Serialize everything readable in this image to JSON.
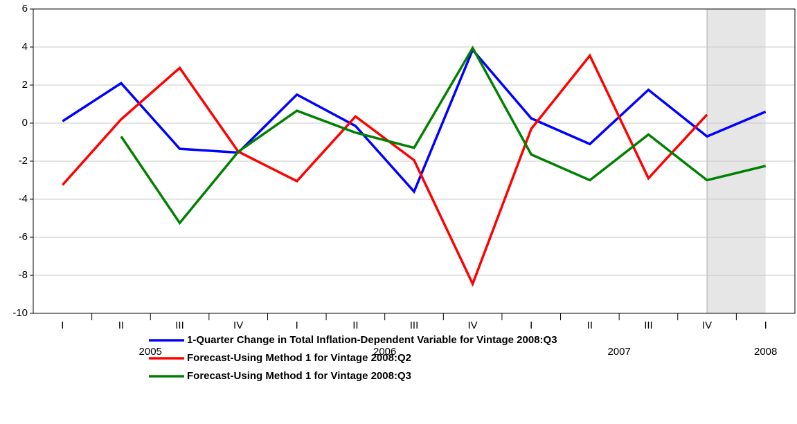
{
  "chart_data": {
    "type": "line",
    "categories": [
      "I",
      "II",
      "III",
      "IV",
      "I",
      "II",
      "III",
      "IV",
      "I",
      "II",
      "III",
      "IV",
      "I"
    ],
    "groups": [
      {
        "label": "2005",
        "span": 4
      },
      {
        "label": "2006",
        "span": 4
      },
      {
        "label": "2007",
        "span": 4
      },
      {
        "label": "2008",
        "span": 1
      }
    ],
    "shaded_range": [
      11,
      12
    ],
    "ylim": [
      -10,
      6
    ],
    "yticks": [
      -10,
      -8,
      -6,
      -4,
      -2,
      0,
      2,
      4,
      6
    ],
    "grid": true,
    "legend": "bottom",
    "series": [
      {
        "name": "1-Quarter Change in Total Inflation-Dependent Variable for Vintage 2008:Q3",
        "color": "#0000ff",
        "values": [
          0.1,
          2.1,
          -1.35,
          -1.55,
          1.5,
          -0.15,
          -3.6,
          3.85,
          0.25,
          -1.1,
          1.75,
          -0.7,
          0.6
        ]
      },
      {
        "name": "Forecast-Using Method 1 for Vintage 2008:Q2",
        "color": "#ff0000",
        "values": [
          -3.25,
          0.2,
          2.9,
          -1.5,
          -3.05,
          0.35,
          -1.95,
          -8.45,
          -0.3,
          3.55,
          -2.9,
          0.45,
          null
        ]
      },
      {
        "name": "Forecast-Using Method 1 for Vintage 2008:Q3",
        "color": "#008000",
        "values": [
          null,
          -0.7,
          -5.25,
          -1.5,
          0.65,
          -0.5,
          -1.3,
          3.95,
          -1.65,
          -3.0,
          -0.6,
          -3.0,
          -2.25
        ]
      }
    ]
  }
}
